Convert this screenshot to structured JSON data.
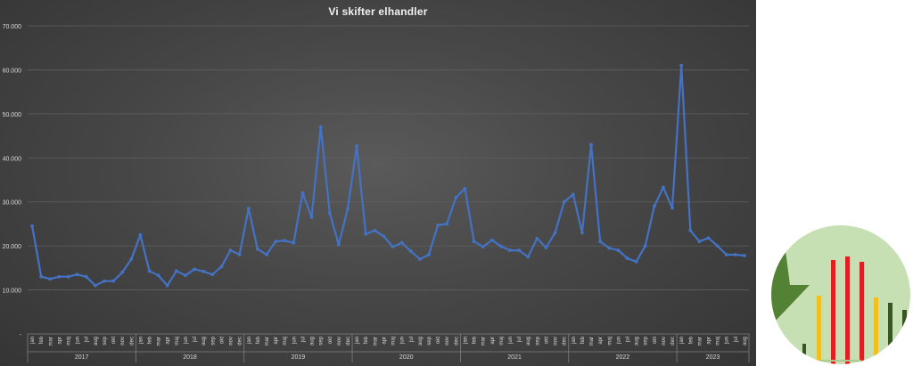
{
  "chart_data": {
    "type": "line",
    "title": "Vi skifter elhandler",
    "xlabel": "",
    "ylabel": "",
    "ylim": [
      0,
      70000
    ],
    "yticks": [
      "-",
      "10.000",
      "20.000",
      "30.000",
      "40.000",
      "50.000",
      "60.000",
      "70.000"
    ],
    "grid": true,
    "years": [
      "2017",
      "2018",
      "2019",
      "2020",
      "2021",
      "2022",
      "2023"
    ],
    "months": [
      "jan",
      "feb",
      "mar",
      "apr",
      "maj",
      "jun",
      "jul",
      "aug",
      "sep",
      "okt",
      "nov",
      "dec"
    ],
    "last_year_months": 8,
    "series_color": "#4472c4",
    "values": [
      24500,
      13000,
      12500,
      13000,
      13000,
      13500,
      13000,
      11000,
      12000,
      12000,
      14000,
      17000,
      22500,
      14300,
      13300,
      11000,
      14300,
      13300,
      14700,
      14200,
      13500,
      15300,
      19000,
      18000,
      28500,
      19300,
      18000,
      21000,
      21200,
      20700,
      32000,
      26500,
      47000,
      27500,
      20300,
      28500,
      42700,
      22700,
      23500,
      22200,
      19800,
      20700,
      18800,
      17000,
      18000,
      24700,
      25000,
      31000,
      33000,
      21000,
      19800,
      21300,
      19900,
      19000,
      19000,
      17500,
      21700,
      19600,
      23000,
      30000,
      31700,
      23000,
      43000,
      21000,
      19500,
      19000,
      17200,
      16400,
      20000,
      29000,
      33300,
      28600,
      61000,
      23500,
      21000,
      21800,
      20000,
      18000,
      18000,
      17800
    ]
  },
  "logo": {
    "name": "green-circle-bar-logo"
  }
}
